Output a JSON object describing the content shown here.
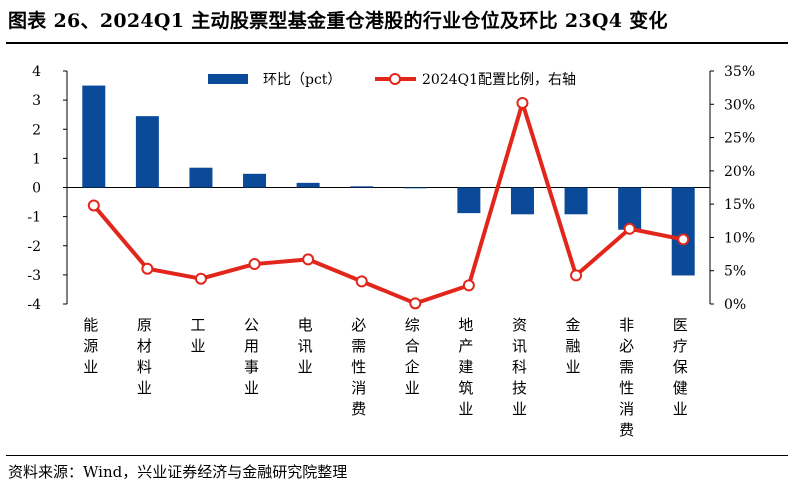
{
  "header": {
    "title": "图表 26、2024Q1 主动股票型基金重仓港股的行业仓位及环比 23Q4 变化"
  },
  "footer": {
    "source": "资料来源：Wind，兴业证券经济与金融研究院整理"
  },
  "chart_data": {
    "type": "bar+line",
    "categories": [
      "能源业",
      "原材料业",
      "工业",
      "公用事业",
      "电讯业",
      "必需性消费",
      "综合企业",
      "地产建筑业",
      "资讯科技业",
      "金融业",
      "非必需性消费",
      "医疗保健业"
    ],
    "series": [
      {
        "name": "环比（pct）",
        "type": "bar",
        "axis": "left",
        "color": "#0b4a99",
        "values": [
          3.5,
          2.45,
          0.68,
          0.47,
          0.16,
          0.04,
          0.0,
          -0.88,
          -0.92,
          -0.92,
          -1.45,
          -3.02
        ]
      },
      {
        "name": "2024Q1配置比例，右轴",
        "type": "line",
        "axis": "right",
        "color": "#e2261c",
        "values": [
          14.8,
          5.3,
          3.8,
          6.0,
          6.7,
          3.4,
          0.1,
          2.8,
          30.2,
          4.3,
          11.3,
          9.7
        ]
      }
    ],
    "y_left": {
      "min": -4,
      "max": 4,
      "ticks": [
        "-4",
        "-3",
        "-2",
        "-1",
        "0",
        "1",
        "2",
        "3",
        "4"
      ]
    },
    "y_right": {
      "min": 0,
      "max": 35,
      "ticks": [
        "0%",
        "5%",
        "10%",
        "15%",
        "20%",
        "25%",
        "30%",
        "35%"
      ]
    },
    "legend_position": "top-center",
    "grid": false
  }
}
